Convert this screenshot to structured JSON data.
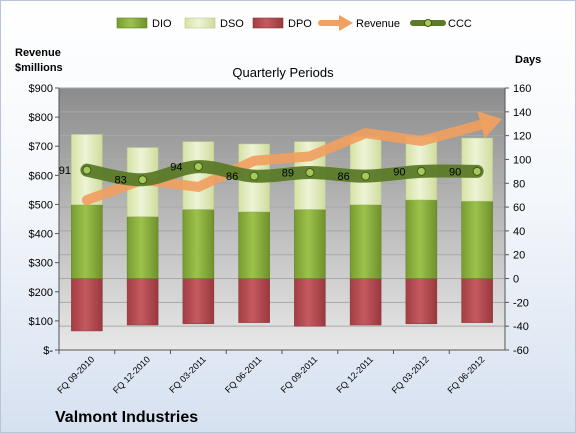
{
  "chart_data": {
    "type": "bar",
    "title": "Quarterly Periods",
    "company": "Valmont Industries",
    "left_axis_label": [
      "Revenue",
      "$millions"
    ],
    "right_axis_label": "Days",
    "categories": [
      "FQ 09-2010",
      "FQ 12-2010",
      "FQ 03-2011",
      "FQ 06-2011",
      "FQ 09-2011",
      "FQ 12-2011",
      "FQ 03-2012",
      "FQ 06-2012"
    ],
    "left_ticks": [
      "$-",
      "$100",
      "$200",
      "$300",
      "$400",
      "$500",
      "$600",
      "$700",
      "$800",
      "$900"
    ],
    "right_ticks": [
      "-60",
      "-40",
      "-20",
      "0",
      "20",
      "40",
      "60",
      "80",
      "100",
      "120",
      "140",
      "160"
    ],
    "ylim_left": [
      0,
      900
    ],
    "ylim_right": [
      -60,
      160
    ],
    "legend_position": "top",
    "series": [
      {
        "name": "DIO",
        "axis": "right",
        "kind": "stacked-bar",
        "color": "#8db33f",
        "values": [
          62,
          52,
          58,
          56,
          58,
          62,
          66,
          65
        ]
      },
      {
        "name": "DSO",
        "axis": "right",
        "kind": "stacked-bar",
        "color": "#dfeab8",
        "values": [
          59,
          58,
          57,
          57,
          57,
          57,
          53,
          53
        ]
      },
      {
        "name": "DPO",
        "axis": "right",
        "kind": "negative-bar",
        "color": "#b64d52",
        "values": [
          -44,
          -39,
          -38,
          -37,
          -40,
          -39,
          -38,
          -37
        ]
      },
      {
        "name": "Revenue",
        "axis": "left",
        "kind": "arrow-line",
        "color": "#f0a060",
        "values": [
          515,
          585,
          560,
          650,
          665,
          745,
          718,
          770
        ]
      },
      {
        "name": "CCC",
        "axis": "right",
        "kind": "line",
        "color": "#5a7a28",
        "values": [
          91,
          83,
          94,
          86,
          89,
          86,
          90,
          90
        ],
        "labels": [
          "91",
          "83",
          "94",
          "86",
          "89",
          "86",
          "90",
          "90"
        ]
      }
    ]
  }
}
